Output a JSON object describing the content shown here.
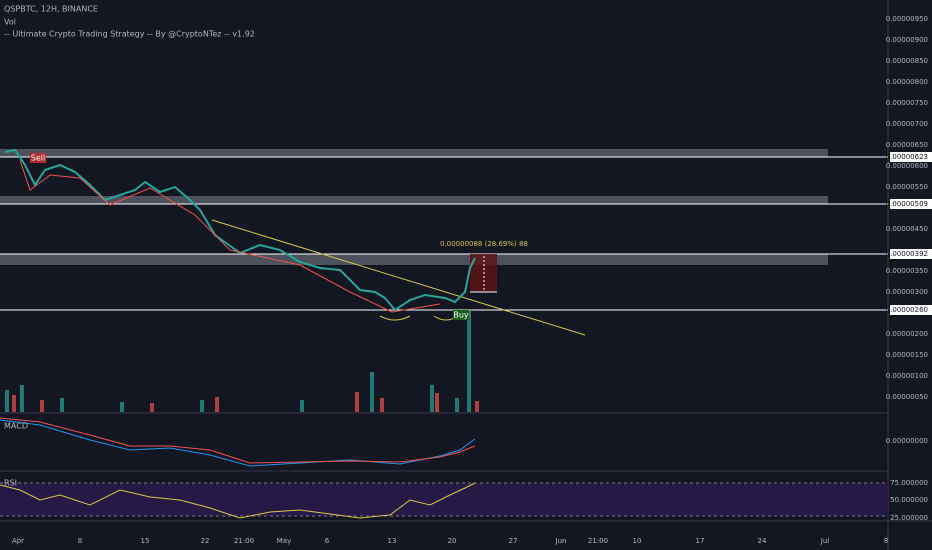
{
  "header": {
    "symbol": "QSPBTC, 12H, BINANCE",
    "volume": "Vol",
    "strategy": "-- Ultimate Crypto Trading Strategy -- By @CryptoNTez -- v1.92"
  },
  "price_axis": [
    "0.00000950",
    "0.00000900",
    "0.00000850",
    "0.00000800",
    "0.00000750",
    "0.00000700",
    "0.00000650",
    "0.00000600",
    "0.00000550",
    "0.00000450",
    "0.00000350",
    "0.00000300",
    "0.00000200",
    "0.00000150",
    "0.00000100",
    "0.00000050"
  ],
  "price_markers": [
    "0.00000623",
    "0.00000509",
    "0.00000392",
    "0.00000260"
  ],
  "annotations": {
    "sell": "Sell",
    "buy": "Buy",
    "measure": "0.00000088 (28.69%) 88"
  },
  "macd": {
    "label": "MACD",
    "axis": "0.00000000"
  },
  "rsi": {
    "label": "RSI",
    "axis": [
      "75.000000",
      "50.000000",
      "25.000000"
    ]
  },
  "time_axis": [
    "Apr",
    "8",
    "15",
    "22",
    "21:00",
    "May",
    "6",
    "13",
    "20",
    "27",
    "Jun",
    "21:00",
    "10",
    "17",
    "24",
    "Jul",
    "8"
  ]
}
